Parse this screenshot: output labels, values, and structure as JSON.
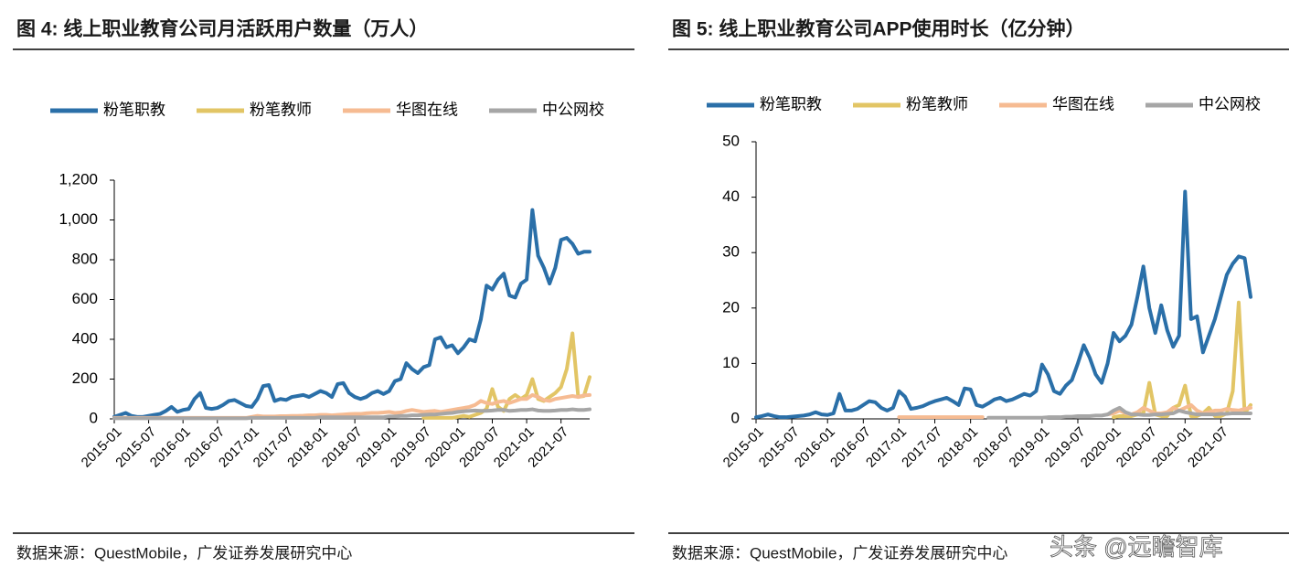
{
  "chart_data": [
    {
      "type": "line",
      "title": "图 4:  线上职业教育公司月活跃用户数量（万人）",
      "source": "数据来源：QuestMobile，广发证券发展研究中心",
      "categories": [
        "2015-01",
        null,
        null,
        null,
        null,
        null,
        "2015-07",
        null,
        null,
        null,
        null,
        null,
        "2016-01",
        null,
        null,
        null,
        null,
        null,
        "2016-07",
        null,
        null,
        null,
        null,
        null,
        "2017-01",
        null,
        null,
        null,
        null,
        null,
        "2017-07",
        null,
        null,
        null,
        null,
        null,
        "2018-01",
        null,
        null,
        null,
        null,
        null,
        "2018-07",
        null,
        null,
        null,
        null,
        null,
        "2019-01",
        null,
        null,
        null,
        null,
        null,
        "2019-07",
        null,
        null,
        null,
        null,
        null,
        "2020-01",
        null,
        null,
        null,
        null,
        null,
        "2020-07",
        null,
        null,
        null,
        null,
        null,
        "2021-01",
        null,
        null,
        null,
        null,
        null,
        "2021-07",
        null,
        null,
        null,
        null,
        null
      ],
      "ylim": [
        0,
        1200
      ],
      "yticks": [
        0,
        200,
        400,
        600,
        800,
        {
          "value": 1000,
          "label": "1,000"
        },
        {
          "value": 1200,
          "label": "1,200"
        }
      ],
      "series": [
        {
          "name": "粉笔职教",
          "color": "#2a6fa8",
          "values": [
            10,
            20,
            30,
            15,
            10,
            10,
            15,
            20,
            25,
            40,
            60,
            35,
            45,
            50,
            100,
            130,
            55,
            50,
            55,
            70,
            90,
            95,
            80,
            65,
            60,
            100,
            165,
            170,
            90,
            100,
            95,
            110,
            115,
            120,
            110,
            125,
            140,
            130,
            110,
            175,
            180,
            130,
            110,
            100,
            110,
            130,
            140,
            125,
            140,
            190,
            200,
            280,
            250,
            230,
            260,
            270,
            400,
            410,
            360,
            370,
            330,
            360,
            400,
            390,
            500,
            670,
            650,
            700,
            730,
            620,
            610,
            680,
            700,
            1050,
            820,
            760,
            680,
            760,
            900,
            910,
            880,
            830,
            840,
            840
          ]
        },
        {
          "name": "粉笔教师",
          "color": "#e2c565",
          "values": [
            null,
            null,
            null,
            null,
            null,
            null,
            null,
            null,
            null,
            null,
            null,
            null,
            null,
            null,
            null,
            null,
            null,
            null,
            null,
            null,
            null,
            null,
            null,
            null,
            null,
            null,
            null,
            null,
            null,
            null,
            null,
            null,
            null,
            null,
            null,
            null,
            null,
            null,
            null,
            null,
            null,
            null,
            null,
            null,
            null,
            null,
            null,
            null,
            null,
            null,
            null,
            null,
            null,
            null,
            5,
            5,
            5,
            5,
            5,
            5,
            10,
            15,
            10,
            20,
            30,
            50,
            150,
            60,
            40,
            100,
            120,
            100,
            120,
            200,
            100,
            90,
            110,
            130,
            160,
            250,
            430,
            110,
            115,
            210
          ]
        },
        {
          "name": "华图在线",
          "color": "#f6bb92",
          "values": [
            5,
            5,
            5,
            5,
            5,
            5,
            5,
            5,
            5,
            5,
            5,
            5,
            5,
            5,
            5,
            5,
            5,
            5,
            5,
            5,
            5,
            5,
            5,
            5,
            10,
            15,
            12,
            12,
            12,
            14,
            14,
            15,
            15,
            16,
            18,
            18,
            20,
            20,
            18,
            20,
            22,
            24,
            25,
            25,
            28,
            30,
            30,
            32,
            35,
            30,
            32,
            40,
            45,
            40,
            35,
            38,
            40,
            35,
            40,
            45,
            50,
            55,
            60,
            70,
            90,
            80,
            75,
            85,
            90,
            80,
            90,
            100,
            100,
            120,
            110,
            95,
            90,
            100,
            105,
            110,
            115,
            110,
            118,
            120
          ]
        },
        {
          "name": "中公网校",
          "color": "#a6a6a6",
          "values": [
            3,
            3,
            3,
            3,
            3,
            3,
            3,
            3,
            3,
            3,
            3,
            3,
            3,
            3,
            3,
            3,
            3,
            3,
            3,
            3,
            3,
            3,
            3,
            3,
            5,
            5,
            5,
            5,
            5,
            5,
            5,
            5,
            5,
            5,
            5,
            5,
            8,
            8,
            8,
            8,
            8,
            8,
            8,
            8,
            8,
            8,
            8,
            8,
            12,
            12,
            15,
            15,
            18,
            18,
            20,
            22,
            22,
            25,
            28,
            30,
            35,
            38,
            40,
            42,
            40,
            40,
            42,
            45,
            45,
            40,
            42,
            45,
            45,
            48,
            42,
            40,
            40,
            42,
            45,
            45,
            48,
            45,
            45,
            48
          ]
        }
      ]
    },
    {
      "type": "line",
      "title": "图 5:  线上职业教育公司APP使用时长（亿分钟）",
      "source": "数据来源：QuestMobile，广发证券发展研究中心",
      "categories": [
        "2015-01",
        null,
        null,
        null,
        null,
        null,
        "2015-07",
        null,
        null,
        null,
        null,
        null,
        "2016-01",
        null,
        null,
        null,
        null,
        null,
        "2016-07",
        null,
        null,
        null,
        null,
        null,
        "2017-01",
        null,
        null,
        null,
        null,
        null,
        "2017-07",
        null,
        null,
        null,
        null,
        null,
        "2018-01",
        null,
        null,
        null,
        null,
        null,
        "2018-07",
        null,
        null,
        null,
        null,
        null,
        "2019-01",
        null,
        null,
        null,
        null,
        null,
        "2019-07",
        null,
        null,
        null,
        null,
        null,
        "2020-01",
        null,
        null,
        null,
        null,
        null,
        "2020-07",
        null,
        null,
        null,
        null,
        null,
        "2021-01",
        null,
        null,
        null,
        null,
        null,
        "2021-07",
        null,
        null,
        null,
        null,
        null
      ],
      "ylim": [
        0,
        50
      ],
      "yticks": [
        0,
        10,
        20,
        30,
        40,
        50
      ],
      "series": [
        {
          "name": "粉笔职教",
          "color": "#2a6fa8",
          "values": [
            0.3,
            0.5,
            0.8,
            0.5,
            0.3,
            0.3,
            0.4,
            0.5,
            0.6,
            0.8,
            1.2,
            0.8,
            0.7,
            1.0,
            4.5,
            1.5,
            1.5,
            1.8,
            2.5,
            3.2,
            3.0,
            2.0,
            1.5,
            2.0,
            5.0,
            4.0,
            1.8,
            2.0,
            2.3,
            2.8,
            3.2,
            3.5,
            3.8,
            3.2,
            2.5,
            5.5,
            5.3,
            2.5,
            2.2,
            2.8,
            3.5,
            3.8,
            3.2,
            3.5,
            4.0,
            4.5,
            4.2,
            5.0,
            9.8,
            8.0,
            5.0,
            4.5,
            6.0,
            7.0,
            10.0,
            13.3,
            11.0,
            8.0,
            6.5,
            10.0,
            15.5,
            14.0,
            15.0,
            17.0,
            22.0,
            27.5,
            20.0,
            15.5,
            20.5,
            16.0,
            13.0,
            15.0,
            41.0,
            18.0,
            18.5,
            12.0,
            15.0,
            18.0,
            22.0,
            26.0,
            28.0,
            29.3,
            29.0,
            22.0
          ]
        },
        {
          "name": "粉笔教师",
          "color": "#e2c565",
          "values": [
            null,
            null,
            null,
            null,
            null,
            null,
            null,
            null,
            null,
            null,
            null,
            null,
            null,
            null,
            null,
            null,
            null,
            null,
            null,
            null,
            null,
            null,
            null,
            null,
            null,
            null,
            null,
            null,
            null,
            null,
            null,
            null,
            null,
            null,
            null,
            null,
            null,
            null,
            null,
            null,
            null,
            null,
            null,
            null,
            null,
            null,
            null,
            null,
            null,
            null,
            null,
            null,
            null,
            null,
            null,
            null,
            null,
            null,
            null,
            null,
            0.3,
            0.5,
            0.5,
            0.5,
            0.8,
            1.0,
            6.5,
            0.8,
            0.5,
            0.5,
            2.0,
            2.5,
            6.0,
            0.5,
            0.5,
            1.0,
            2.0,
            0.5,
            0.5,
            1.0,
            5.0,
            21.0,
            1.0,
            2.5
          ]
        },
        {
          "name": "华图在线",
          "color": "#f6bb92",
          "values": [
            null,
            null,
            null,
            null,
            null,
            null,
            null,
            null,
            null,
            null,
            null,
            null,
            null,
            null,
            null,
            null,
            null,
            null,
            null,
            null,
            null,
            null,
            null,
            null,
            0.3,
            0.3,
            0.3,
            0.3,
            0.3,
            0.3,
            0.3,
            0.3,
            0.3,
            0.3,
            0.3,
            0.3,
            0.3,
            0.3,
            0.3,
            null,
            null,
            null,
            null,
            null,
            null,
            null,
            null,
            null,
            null,
            null,
            null,
            null,
            null,
            null,
            null,
            null,
            null,
            null,
            null,
            0.8,
            1.0,
            1.5,
            1.0,
            0.8,
            1.2,
            2.0,
            1.5,
            1.0,
            1.0,
            1.2,
            2.0,
            1.5,
            2.0,
            2.5,
            1.5,
            1.0,
            1.2,
            1.5,
            1.5,
            1.8,
            1.6,
            1.5,
            1.8,
            2.0
          ]
        },
        {
          "name": "中公网校",
          "color": "#a6a6a6",
          "values": [
            null,
            null,
            null,
            null,
            null,
            null,
            null,
            null,
            null,
            null,
            null,
            null,
            null,
            null,
            null,
            null,
            null,
            null,
            null,
            null,
            null,
            null,
            null,
            null,
            null,
            null,
            null,
            null,
            null,
            null,
            null,
            null,
            null,
            null,
            null,
            null,
            null,
            null,
            null,
            0.2,
            0.2,
            0.2,
            0.2,
            0.2,
            0.2,
            0.2,
            0.2,
            0.2,
            0.2,
            0.3,
            0.3,
            0.3,
            0.4,
            0.4,
            0.5,
            0.5,
            0.5,
            0.6,
            0.6,
            0.8,
            1.5,
            2.0,
            1.2,
            0.8,
            0.8,
            0.7,
            0.7,
            0.8,
            0.8,
            0.9,
            1.0,
            1.5,
            1.2,
            1.0,
            0.8,
            0.8,
            0.8,
            0.8,
            0.9,
            0.9,
            1.0,
            1.0,
            1.0,
            1.0
          ]
        }
      ]
    }
  ],
  "watermark": "头条 @远瞻智库"
}
